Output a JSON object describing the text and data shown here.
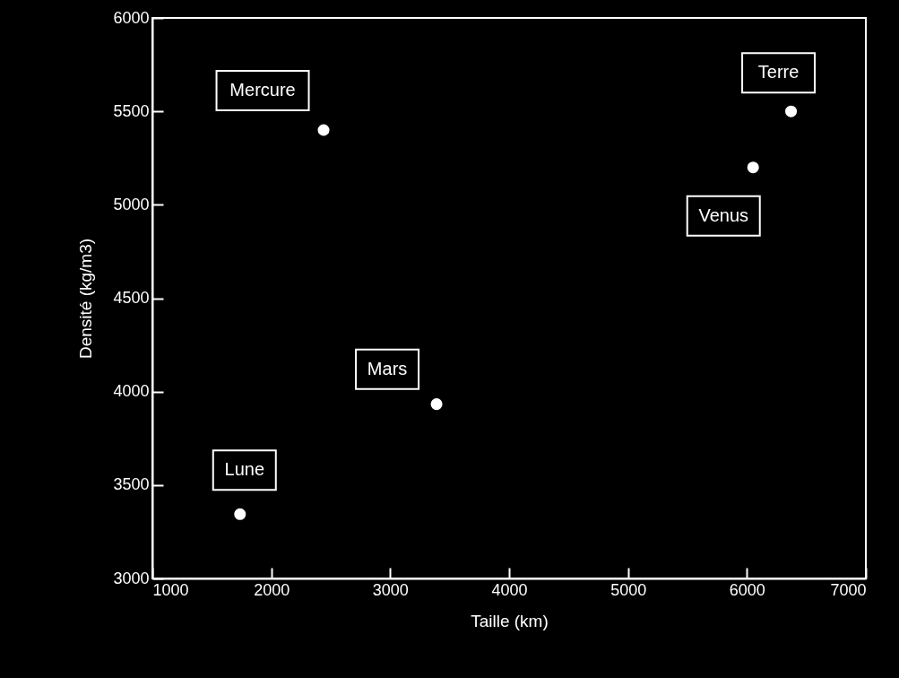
{
  "chart_data": {
    "type": "scatter",
    "xlabel": "Taille (km)",
    "ylabel": "Densité (kg/m3)",
    "x": [
      1737,
      2440,
      3390,
      6052,
      6371
    ],
    "series": [
      {
        "color": "#ffffff",
        "values": [
          3344,
          5400,
          3933,
          5200,
          5500
        ]
      }
    ],
    "xlim": [
      1000,
      7000
    ],
    "xticks": [
      1000,
      2000,
      3000,
      4000,
      5000,
      6000,
      7000
    ],
    "ylim": [
      3000,
      6000
    ],
    "yticks": [
      3000,
      3500,
      4000,
      4500,
      5000,
      5500,
      6000
    ],
    "marker": "circle",
    "grid": false,
    "annotations": [
      {
        "text": "Lune",
        "x": 1737,
        "y": 3344
      },
      {
        "text": "Mercure",
        "x": 2440,
        "y": 5400
      },
      {
        "text": "Mars",
        "x": 3390,
        "y": 3933
      },
      {
        "text": "Venus",
        "x": 6052,
        "y": 5200
      },
      {
        "text": "Terre",
        "x": 6371,
        "y": 5500
      }
    ]
  }
}
